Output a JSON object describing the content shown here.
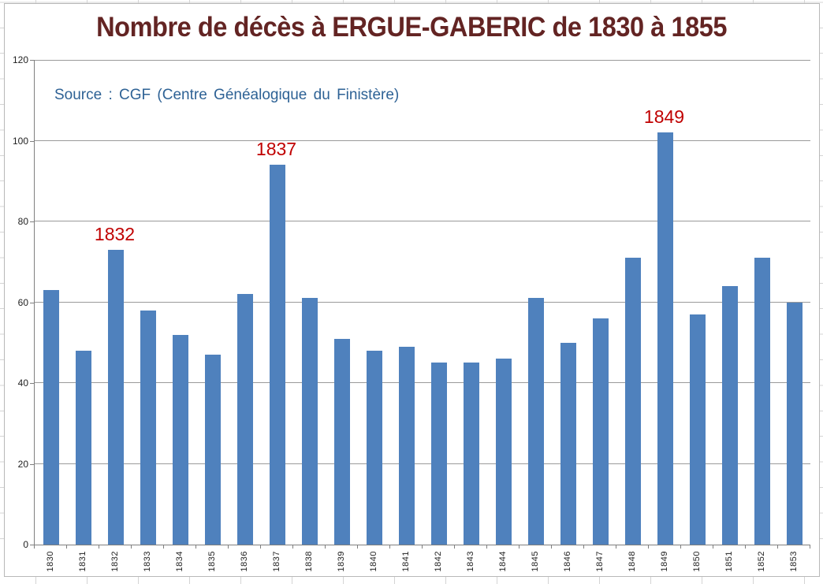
{
  "chart_data": {
    "type": "bar",
    "title": "Nombre de décès à ERGUE-GABERIC de 1830 à 1855",
    "source_note": "Source : CGF (Centre Généalogique du Finistère)",
    "categories": [
      "1830",
      "1831",
      "1832",
      "1833",
      "1834",
      "1835",
      "1836",
      "1837",
      "1838",
      "1839",
      "1840",
      "1841",
      "1842",
      "1843",
      "1844",
      "1845",
      "1846",
      "1847",
      "1848",
      "1849",
      "1850",
      "1851",
      "1852",
      "1853"
    ],
    "values": [
      63,
      48,
      73,
      58,
      52,
      47,
      62,
      94,
      61,
      51,
      48,
      49,
      45,
      45,
      46,
      61,
      50,
      56,
      71,
      102,
      57,
      64,
      71,
      60
    ],
    "annotations": [
      {
        "label": "1832",
        "category": "1832"
      },
      {
        "label": "1837",
        "category": "1837"
      },
      {
        "label": "1849",
        "category": "1849"
      }
    ],
    "xlabel": "",
    "ylabel": "",
    "ylim": [
      0,
      120
    ],
    "yticks": [
      0,
      20,
      40,
      60,
      80,
      100,
      120
    ],
    "grid": true,
    "legend": false,
    "bar_color": "#4f81bd",
    "annotation_color": "#c00000",
    "title_color": "#632423",
    "source_color": "#2e6295"
  }
}
